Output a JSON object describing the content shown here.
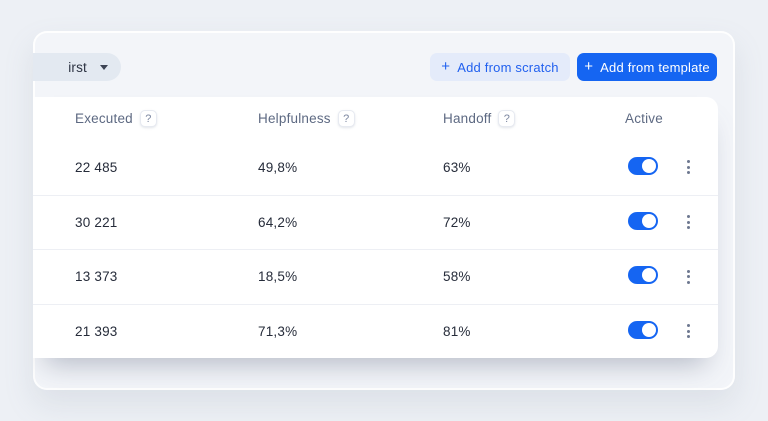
{
  "toolbar": {
    "sort_dropdown": {
      "visible_label": "irst"
    },
    "add_from_scratch": {
      "icon": "+",
      "label": "Add from scratch"
    },
    "add_from_template": {
      "icon": "+",
      "label": "Add from template"
    }
  },
  "table": {
    "columns": [
      {
        "label": "Executed",
        "help": "?"
      },
      {
        "label": "Helpfulness",
        "help": "?"
      },
      {
        "label": "Handoff",
        "help": "?"
      },
      {
        "label": "Active",
        "help": ""
      }
    ],
    "rows": [
      {
        "executed": "22 485",
        "helpfulness": "49,8%",
        "handoff": "63%",
        "active": true
      },
      {
        "executed": "30 221",
        "helpfulness": "64,2%",
        "handoff": "72%",
        "active": true
      },
      {
        "executed": "13 373",
        "helpfulness": "18,5%",
        "handoff": "58%",
        "active": true
      },
      {
        "executed": "21 393",
        "helpfulness": "71,3%",
        "handoff": "81%",
        "active": true
      }
    ]
  },
  "colors": {
    "accent_blue": "#1565f2",
    "light_button_bg": "#e4ebfa",
    "page_bg": "#edf0f5",
    "panel_bg": "#f3f5f9",
    "card_bg": "#ffffff",
    "header_text": "#5d6982",
    "value_text": "#262c3a",
    "toggle_on": "#1565f2"
  }
}
